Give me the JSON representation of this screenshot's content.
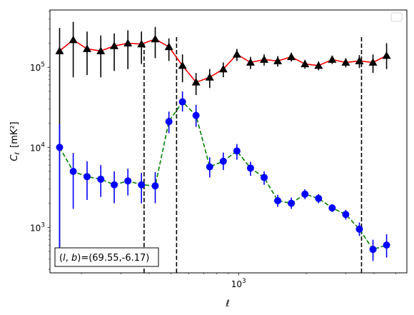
{
  "chart_data": {
    "type": "scatter",
    "title": "",
    "xlabel": "ℓ",
    "ylabel_main": "C",
    "ylabel_sub": "ℓ",
    "ylabel_unit": "[mK²]",
    "xscale": "log",
    "yscale": "log",
    "xlim": [
      145,
      5600
    ],
    "ylim": [
      270,
      520000
    ],
    "x_tick_labels": [
      {
        "value": 1000,
        "base": "10",
        "exp": "3"
      }
    ],
    "y_tick_labels": [
      {
        "value": 1000,
        "base": "10",
        "exp": "3"
      },
      {
        "value": 10000,
        "base": "10",
        "exp": "4"
      },
      {
        "value": 100000,
        "base": "10",
        "exp": "5"
      }
    ],
    "legend": "top-right (empty)",
    "grid": false,
    "vlines": [
      {
        "x": 380,
        "ymax": 195000
      },
      {
        "x": 530,
        "ymax": 250000
      },
      {
        "x": 3520,
        "ymax": 250000
      }
    ],
    "annotation": {
      "prefix": "(l, b)",
      "text": "=(69.55,-6.17)"
    },
    "series": [
      {
        "marker": "triangle",
        "color": "#000000",
        "line_color": "#ff0000",
        "line_style": "solid",
        "points": [
          {
            "x": 160,
            "y": 160000,
            "lo": 550,
            "hi": 310000
          },
          {
            "x": 184,
            "y": 220000,
            "lo": 75000,
            "hi": 370000
          },
          {
            "x": 212,
            "y": 170000,
            "lo": 80000,
            "hi": 280000
          },
          {
            "x": 244,
            "y": 160000,
            "lo": 75000,
            "hi": 250000
          },
          {
            "x": 280,
            "y": 185000,
            "lo": 90000,
            "hi": 265000
          },
          {
            "x": 322,
            "y": 200000,
            "lo": 95000,
            "hi": 290000
          },
          {
            "x": 370,
            "y": 195000,
            "lo": 110000,
            "hi": 280000
          },
          {
            "x": 426,
            "y": 225000,
            "lo": 130000,
            "hi": 320000
          },
          {
            "x": 490,
            "y": 180000,
            "lo": 120000,
            "hi": 230000
          },
          {
            "x": 563,
            "y": 105000,
            "lo": 65000,
            "hi": 145000
          },
          {
            "x": 647,
            "y": 65000,
            "lo": 45000,
            "hi": 85000
          },
          {
            "x": 744,
            "y": 75000,
            "lo": 55000,
            "hi": 95000
          },
          {
            "x": 855,
            "y": 95000,
            "lo": 75000,
            "hi": 115000
          },
          {
            "x": 983,
            "y": 145000,
            "lo": 120000,
            "hi": 170000
          },
          {
            "x": 1130,
            "y": 115000,
            "lo": 95000,
            "hi": 135000
          },
          {
            "x": 1299,
            "y": 125000,
            "lo": 105000,
            "hi": 145000
          },
          {
            "x": 1493,
            "y": 120000,
            "lo": 102000,
            "hi": 138000
          },
          {
            "x": 1716,
            "y": 135000,
            "lo": 118000,
            "hi": 152000
          },
          {
            "x": 1973,
            "y": 110000,
            "lo": 96000,
            "hi": 124000
          },
          {
            "x": 2268,
            "y": 105000,
            "lo": 92000,
            "hi": 118000
          },
          {
            "x": 2607,
            "y": 125000,
            "lo": 110000,
            "hi": 140000
          },
          {
            "x": 2996,
            "y": 115000,
            "lo": 100000,
            "hi": 130000
          },
          {
            "x": 3444,
            "y": 120000,
            "lo": 98000,
            "hi": 142000
          },
          {
            "x": 3959,
            "y": 115000,
            "lo": 85000,
            "hi": 145000
          },
          {
            "x": 4550,
            "y": 140000,
            "lo": 95000,
            "hi": 200000
          }
        ]
      },
      {
        "marker": "circle",
        "color": "#0000ff",
        "line_color": "#008000",
        "line_style": "dashed",
        "points": [
          {
            "x": 160,
            "y": 10000,
            "lo": 500,
            "hi": 19500
          },
          {
            "x": 184,
            "y": 5000,
            "lo": 1700,
            "hi": 8500
          },
          {
            "x": 212,
            "y": 4300,
            "lo": 2200,
            "hi": 6700
          },
          {
            "x": 244,
            "y": 4000,
            "lo": 2400,
            "hi": 6000
          },
          {
            "x": 280,
            "y": 3400,
            "lo": 2000,
            "hi": 5000
          },
          {
            "x": 322,
            "y": 3800,
            "lo": 2500,
            "hi": 5400
          },
          {
            "x": 370,
            "y": 3400,
            "lo": 2000,
            "hi": 4800
          },
          {
            "x": 426,
            "y": 3300,
            "lo": 2000,
            "hi": 4900
          },
          {
            "x": 490,
            "y": 21000,
            "lo": 15000,
            "hi": 28000
          },
          {
            "x": 563,
            "y": 37000,
            "lo": 28000,
            "hi": 50000
          },
          {
            "x": 647,
            "y": 25000,
            "lo": 18000,
            "hi": 34000
          },
          {
            "x": 744,
            "y": 5700,
            "lo": 4200,
            "hi": 7500
          },
          {
            "x": 855,
            "y": 6700,
            "lo": 5200,
            "hi": 8600
          },
          {
            "x": 983,
            "y": 9000,
            "lo": 7000,
            "hi": 11000
          },
          {
            "x": 1130,
            "y": 5500,
            "lo": 4400,
            "hi": 6600
          },
          {
            "x": 1299,
            "y": 4200,
            "lo": 3400,
            "hi": 5000
          },
          {
            "x": 1493,
            "y": 2150,
            "lo": 1800,
            "hi": 2550
          },
          {
            "x": 1716,
            "y": 2000,
            "lo": 1700,
            "hi": 2350
          },
          {
            "x": 1973,
            "y": 2600,
            "lo": 2250,
            "hi": 3000
          },
          {
            "x": 2268,
            "y": 2300,
            "lo": 2000,
            "hi": 2600
          },
          {
            "x": 2607,
            "y": 1750,
            "lo": 1550,
            "hi": 1950
          },
          {
            "x": 2996,
            "y": 1450,
            "lo": 1250,
            "hi": 1650
          },
          {
            "x": 3444,
            "y": 950,
            "lo": 780,
            "hi": 1150
          },
          {
            "x": 3959,
            "y": 530,
            "lo": 380,
            "hi": 700
          },
          {
            "x": 4550,
            "y": 600,
            "lo": 420,
            "hi": 820
          }
        ]
      }
    ]
  }
}
